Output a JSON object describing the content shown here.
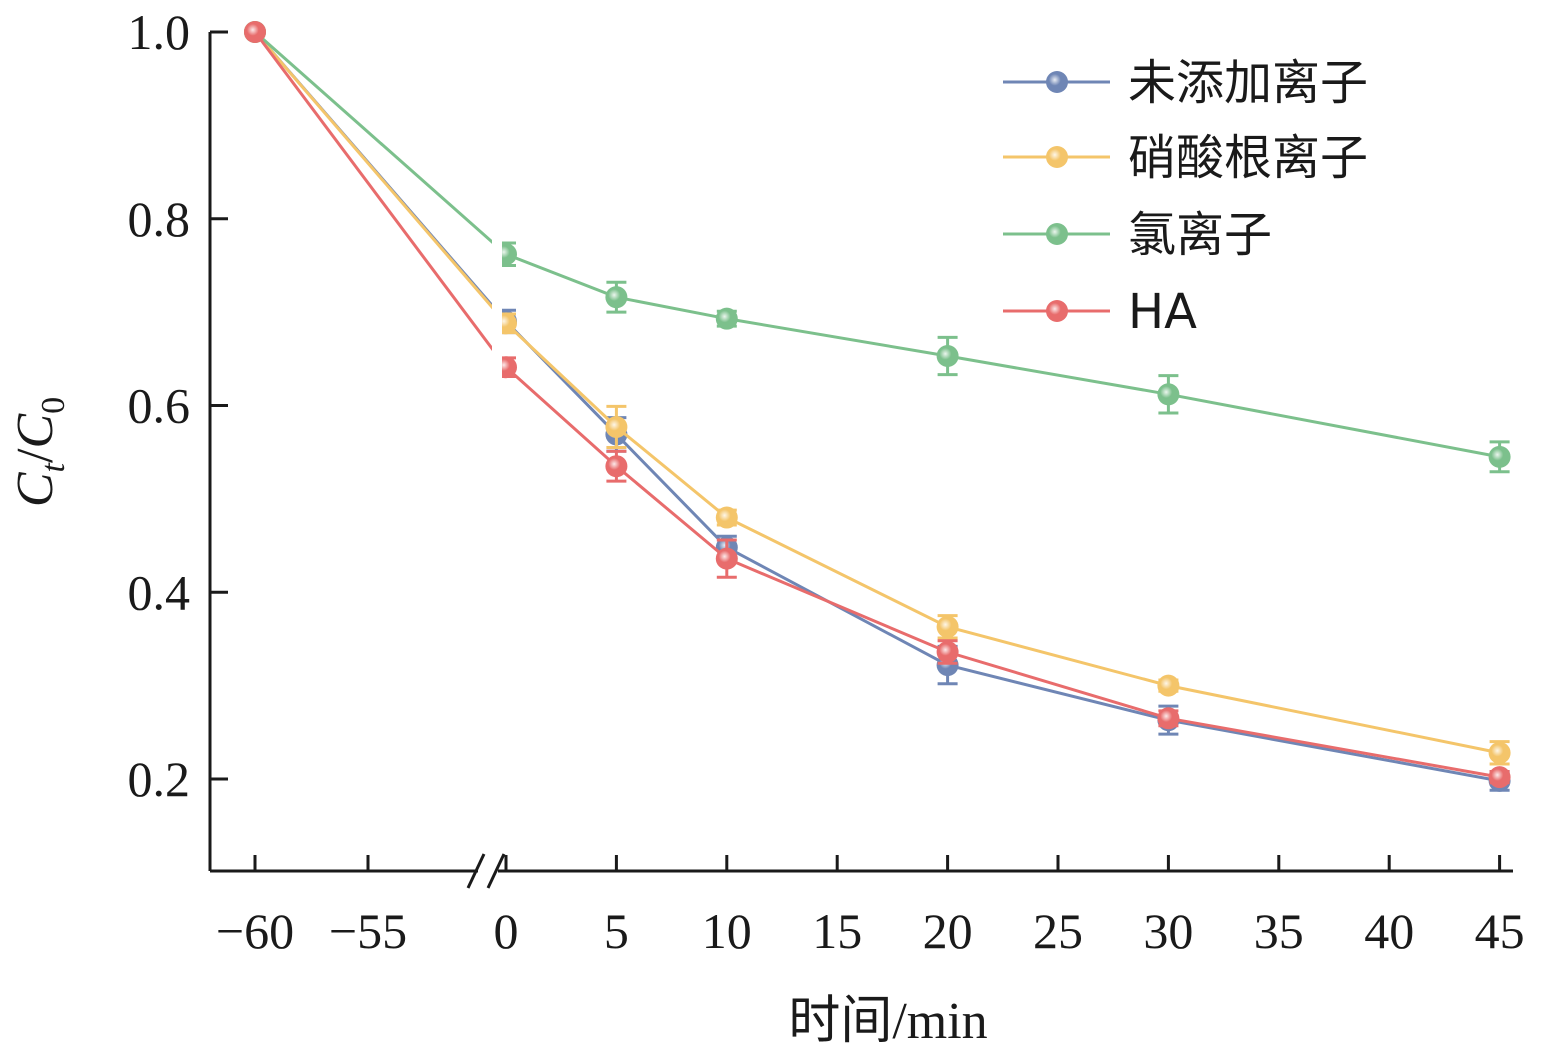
{
  "chart_data": {
    "type": "line",
    "title": "",
    "xlabel": "时间/min",
    "ylabel": {
      "main": "C",
      "sub1": "t",
      "slash": "/",
      "main2": "C",
      "sub2": "0"
    },
    "x": [
      -60,
      0,
      5,
      10,
      20,
      30,
      45
    ],
    "x_ticks": [
      -60,
      -55,
      0,
      5,
      10,
      15,
      20,
      25,
      30,
      35,
      40,
      45
    ],
    "x_tick_labels": [
      "−60",
      "−55",
      "0",
      "5",
      "10",
      "15",
      "20",
      "25",
      "30",
      "35",
      "40",
      "45"
    ],
    "x_axis_break": [
      -55,
      0
    ],
    "y_ticks": [
      0.2,
      0.4,
      0.6,
      0.8,
      1.0
    ],
    "y_tick_labels": [
      "0.2",
      "0.4",
      "0.6",
      "0.8",
      "1.0"
    ],
    "ylim": [
      0.1,
      1.0
    ],
    "grid": false,
    "legend_position": "top-right",
    "series": [
      {
        "name": "未添加离子",
        "color": "#6f86b5",
        "values": [
          1.0,
          0.69,
          0.569,
          0.448,
          0.322,
          0.263,
          0.198
        ],
        "errors": [
          0,
          0.012,
          0.018,
          0.012,
          0.02,
          0.015,
          0.01
        ]
      },
      {
        "name": "硝酸根离子",
        "color": "#f4c56a",
        "values": [
          1.0,
          0.688,
          0.577,
          0.48,
          0.363,
          0.3,
          0.228
        ],
        "errors": [
          0,
          0.01,
          0.022,
          0.008,
          0.012,
          0.006,
          0.012
        ]
      },
      {
        "name": "氯离子",
        "color": "#7cc08c",
        "values": [
          1.0,
          0.762,
          0.716,
          0.693,
          0.653,
          0.612,
          0.545
        ],
        "errors": [
          0,
          0.012,
          0.016,
          0.008,
          0.02,
          0.02,
          0.016
        ]
      },
      {
        "name": "HA",
        "color": "#e86c6c",
        "values": [
          1.0,
          0.641,
          0.535,
          0.436,
          0.336,
          0.265,
          0.202
        ],
        "errors": [
          0,
          0.01,
          0.016,
          0.02,
          0.012,
          0.008,
          0.006
        ]
      }
    ]
  }
}
